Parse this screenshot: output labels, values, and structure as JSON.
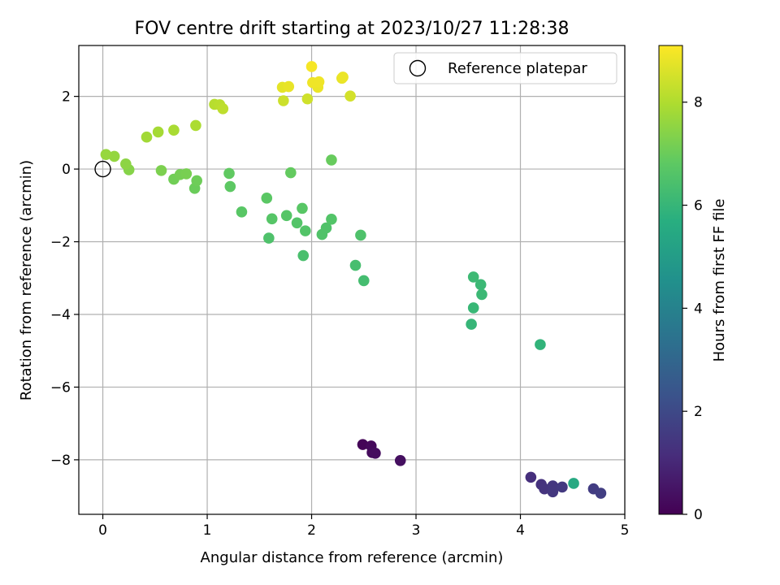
{
  "chart_data": {
    "type": "scatter",
    "title": "FOV centre drift starting at 2023/10/27 11:28:38",
    "xlabel": "Angular distance from reference (arcmin)",
    "ylabel": "Rotation from reference (arcmin)",
    "xlim": [
      -0.23,
      5.0
    ],
    "ylim": [
      -9.5,
      3.4
    ],
    "xticks": [
      0,
      1,
      2,
      3,
      4,
      5
    ],
    "yticks": [
      -8,
      -6,
      -4,
      -2,
      0,
      2
    ],
    "xtick_labels": [
      "0",
      "1",
      "2",
      "3",
      "4",
      "5"
    ],
    "ytick_labels": [
      "−8",
      "−6",
      "−4",
      "−2",
      "0",
      "2"
    ],
    "grid": true,
    "legend": {
      "placement": "upper right",
      "entries": [
        "Reference platepar"
      ]
    },
    "reference_point": {
      "x": 0,
      "y": 0
    },
    "colorbar": {
      "label": "Hours from first FF file",
      "colormap": "viridis",
      "range": [
        0,
        9.1
      ],
      "ticks": [
        0,
        2,
        4,
        6,
        8
      ],
      "tick_labels": [
        "0",
        "2",
        "4",
        "6",
        "8"
      ]
    },
    "points": [
      {
        "x": 2.49,
        "y": -7.58,
        "c": 0.1
      },
      {
        "x": 2.57,
        "y": -7.62,
        "c": 0.2
      },
      {
        "x": 2.58,
        "y": -7.8,
        "c": 0.25
      },
      {
        "x": 2.61,
        "y": -7.82,
        "c": 0.3
      },
      {
        "x": 2.85,
        "y": -8.02,
        "c": 0.35
      },
      {
        "x": 4.1,
        "y": -8.48,
        "c": 1.2
      },
      {
        "x": 4.2,
        "y": -8.68,
        "c": 1.3
      },
      {
        "x": 4.23,
        "y": -8.8,
        "c": 1.35
      },
      {
        "x": 4.31,
        "y": -8.72,
        "c": 1.4
      },
      {
        "x": 4.31,
        "y": -8.88,
        "c": 1.45
      },
      {
        "x": 4.4,
        "y": -8.75,
        "c": 1.5
      },
      {
        "x": 4.7,
        "y": -8.8,
        "c": 1.6
      },
      {
        "x": 4.77,
        "y": -8.92,
        "c": 1.65
      },
      {
        "x": 4.51,
        "y": -8.65,
        "c": 5.5
      },
      {
        "x": 4.19,
        "y": -4.83,
        "c": 5.9
      },
      {
        "x": 3.53,
        "y": -4.27,
        "c": 6.0
      },
      {
        "x": 3.55,
        "y": -3.82,
        "c": 6.05
      },
      {
        "x": 3.63,
        "y": -3.45,
        "c": 6.1
      },
      {
        "x": 3.62,
        "y": -3.18,
        "c": 6.1
      },
      {
        "x": 3.55,
        "y": -2.97,
        "c": 6.15
      },
      {
        "x": 2.5,
        "y": -3.07,
        "c": 6.3
      },
      {
        "x": 2.42,
        "y": -2.65,
        "c": 6.35
      },
      {
        "x": 1.92,
        "y": -2.38,
        "c": 6.4
      },
      {
        "x": 1.59,
        "y": -1.9,
        "c": 6.5
      },
      {
        "x": 2.47,
        "y": -1.82,
        "c": 6.5
      },
      {
        "x": 2.1,
        "y": -1.8,
        "c": 6.55
      },
      {
        "x": 2.14,
        "y": -1.62,
        "c": 6.55
      },
      {
        "x": 1.94,
        "y": -1.7,
        "c": 6.6
      },
      {
        "x": 1.86,
        "y": -1.48,
        "c": 6.6
      },
      {
        "x": 2.19,
        "y": -1.38,
        "c": 6.6
      },
      {
        "x": 1.76,
        "y": -1.28,
        "c": 6.65
      },
      {
        "x": 1.62,
        "y": -1.37,
        "c": 6.65
      },
      {
        "x": 1.91,
        "y": -1.08,
        "c": 6.7
      },
      {
        "x": 1.33,
        "y": -1.18,
        "c": 6.7
      },
      {
        "x": 1.57,
        "y": -0.8,
        "c": 6.75
      },
      {
        "x": 1.22,
        "y": -0.48,
        "c": 6.8
      },
      {
        "x": 1.21,
        "y": -0.12,
        "c": 6.85
      },
      {
        "x": 1.8,
        "y": -0.1,
        "c": 6.9
      },
      {
        "x": 2.19,
        "y": 0.25,
        "c": 6.95
      },
      {
        "x": 0.88,
        "y": -0.53,
        "c": 7.0
      },
      {
        "x": 0.9,
        "y": -0.32,
        "c": 7.05
      },
      {
        "x": 0.68,
        "y": -0.28,
        "c": 7.1
      },
      {
        "x": 0.74,
        "y": -0.15,
        "c": 7.15
      },
      {
        "x": 0.8,
        "y": -0.13,
        "c": 7.2
      },
      {
        "x": 0.56,
        "y": -0.04,
        "c": 7.25
      },
      {
        "x": 0.25,
        "y": -0.02,
        "c": 7.4
      },
      {
        "x": 0.22,
        "y": 0.14,
        "c": 7.5
      },
      {
        "x": 0.11,
        "y": 0.35,
        "c": 7.6
      },
      {
        "x": 0.03,
        "y": 0.4,
        "c": 7.65
      },
      {
        "x": 0.42,
        "y": 0.88,
        "c": 7.8
      },
      {
        "x": 0.53,
        "y": 1.02,
        "c": 7.85
      },
      {
        "x": 0.68,
        "y": 1.07,
        "c": 7.9
      },
      {
        "x": 0.89,
        "y": 1.2,
        "c": 7.95
      },
      {
        "x": 1.07,
        "y": 1.78,
        "c": 8.1
      },
      {
        "x": 1.12,
        "y": 1.77,
        "c": 8.15
      },
      {
        "x": 1.15,
        "y": 1.66,
        "c": 8.2
      },
      {
        "x": 1.73,
        "y": 1.88,
        "c": 8.4
      },
      {
        "x": 1.96,
        "y": 1.93,
        "c": 8.45
      },
      {
        "x": 2.37,
        "y": 2.01,
        "c": 8.5
      },
      {
        "x": 1.72,
        "y": 2.25,
        "c": 8.75
      },
      {
        "x": 1.78,
        "y": 2.27,
        "c": 8.8
      },
      {
        "x": 2.06,
        "y": 2.25,
        "c": 8.85
      },
      {
        "x": 2.01,
        "y": 2.38,
        "c": 8.9
      },
      {
        "x": 2.07,
        "y": 2.4,
        "c": 8.9
      },
      {
        "x": 2.29,
        "y": 2.5,
        "c": 8.8
      },
      {
        "x": 2.3,
        "y": 2.53,
        "c": 8.85
      },
      {
        "x": 2.0,
        "y": 2.82,
        "c": 9.0
      }
    ]
  }
}
